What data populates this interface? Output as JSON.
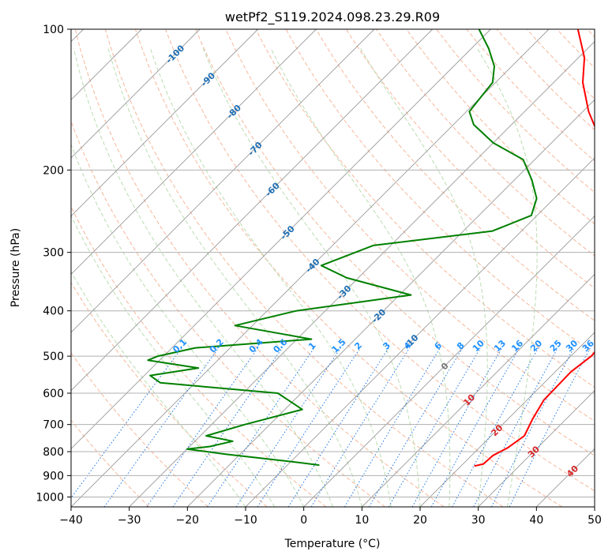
{
  "chart_data": {
    "type": "line",
    "title": "wetPf2_S119.2024.098.23.29.R09",
    "xlabel": "Temperature (°C)",
    "ylabel": "Pressure (hPa)",
    "xlim": [
      -40,
      50
    ],
    "ylim_pressure": [
      1050,
      100
    ],
    "y_scale": "log",
    "skew_deg": 45,
    "x_ticks": [
      "−40",
      "−30",
      "−20",
      "−10",
      "0",
      "10",
      "20",
      "30",
      "40",
      "50"
    ],
    "y_ticks": [
      {
        "p": 100,
        "label": "100"
      },
      {
        "p": 200,
        "label": "200"
      },
      {
        "p": 300,
        "label": "300"
      },
      {
        "p": 400,
        "label": "400"
      },
      {
        "p": 500,
        "label": "500"
      },
      {
        "p": 600,
        "label": "600"
      },
      {
        "p": 700,
        "label": "700"
      },
      {
        "p": 800,
        "label": "800"
      },
      {
        "p": 900,
        "label": "900"
      },
      {
        "p": 1000,
        "label": "1000"
      }
    ],
    "grid": true,
    "colors": {
      "temperature": "#ff0000",
      "dewpoint": "#008000",
      "dry_adiabats": "#f4a582",
      "moist_adiabats": "#b3d9a8",
      "mixing_ratio": "#1f77e4",
      "isotherms": "#9a9a9a",
      "grid": "#b0b0b0",
      "isotherm_label": "#1f6fb5",
      "isotherm_label_zero": "#777777",
      "isotherm_label_warm": "#d62728",
      "mixing_label": "#1e90ff"
    },
    "series": [
      {
        "name": "temperature",
        "points": [
          {
            "p": 859,
            "t": 22.3
          },
          {
            "p": 850,
            "t": 23.5
          },
          {
            "p": 815,
            "t": 23.7
          },
          {
            "p": 785,
            "t": 24.9
          },
          {
            "p": 740,
            "t": 25.7
          },
          {
            "p": 680,
            "t": 24.2
          },
          {
            "p": 620,
            "t": 22.9
          },
          {
            "p": 540,
            "t": 22.7
          },
          {
            "p": 500,
            "t": 23.5
          },
          {
            "p": 470,
            "t": 23.3
          },
          {
            "p": 440,
            "t": 24.3
          },
          {
            "p": 400,
            "t": 23.4
          },
          {
            "p": 350,
            "t": 19.8
          },
          {
            "p": 300,
            "t": 14.5
          },
          {
            "p": 250,
            "t": 7.0
          },
          {
            "p": 220,
            "t": 0.5
          },
          {
            "p": 200,
            "t": -5.5
          },
          {
            "p": 180,
            "t": -10.0
          },
          {
            "p": 150,
            "t": -19.0
          },
          {
            "p": 130,
            "t": -25.0
          },
          {
            "p": 115,
            "t": -29.0
          },
          {
            "p": 100,
            "t": -35.0
          }
        ]
      },
      {
        "name": "dewpoint",
        "points": [
          {
            "p": 855,
            "t": -4.5
          },
          {
            "p": 840,
            "t": -10.0
          },
          {
            "p": 810,
            "t": -22.5
          },
          {
            "p": 790,
            "t": -30.0
          },
          {
            "p": 780,
            "t": -26.5
          },
          {
            "p": 760,
            "t": -23.5
          },
          {
            "p": 740,
            "t": -29.0
          },
          {
            "p": 700,
            "t": -24.3
          },
          {
            "p": 650,
            "t": -17.0
          },
          {
            "p": 600,
            "t": -24.0
          },
          {
            "p": 570,
            "t": -46.0
          },
          {
            "p": 550,
            "t": -49.0
          },
          {
            "p": 530,
            "t": -42.0
          },
          {
            "p": 510,
            "t": -52.0
          },
          {
            "p": 500,
            "t": -51.0
          },
          {
            "p": 480,
            "t": -46.0
          },
          {
            "p": 460,
            "t": -27.5
          },
          {
            "p": 430,
            "t": -43.0
          },
          {
            "p": 400,
            "t": -35.0
          },
          {
            "p": 370,
            "t": -18.0
          },
          {
            "p": 340,
            "t": -32.0
          },
          {
            "p": 320,
            "t": -38.5
          },
          {
            "p": 290,
            "t": -33.0
          },
          {
            "p": 270,
            "t": -15.0
          },
          {
            "p": 250,
            "t": -11.0
          },
          {
            "p": 230,
            "t": -13.0
          },
          {
            "p": 210,
            "t": -17.0
          },
          {
            "p": 190,
            "t": -22.0
          },
          {
            "p": 175,
            "t": -30.0
          },
          {
            "p": 160,
            "t": -36.5
          },
          {
            "p": 150,
            "t": -39.5
          },
          {
            "p": 140,
            "t": -40.0
          },
          {
            "p": 130,
            "t": -40.5
          },
          {
            "p": 120,
            "t": -43.0
          },
          {
            "p": 110,
            "t": -47.0
          },
          {
            "p": 100,
            "t": -52.0
          }
        ]
      }
    ],
    "isotherm_labels": [
      {
        "label": "-100",
        "t": -100,
        "p": 113
      },
      {
        "label": "-90",
        "t": -90,
        "p": 128
      },
      {
        "label": "-80",
        "t": -80,
        "p": 150
      },
      {
        "label": "-70",
        "t": -70,
        "p": 180
      },
      {
        "label": "-60",
        "t": -60,
        "p": 220
      },
      {
        "label": "-50",
        "t": -50,
        "p": 272
      },
      {
        "label": "-40",
        "t": -40,
        "p": 320
      },
      {
        "label": "-30",
        "t": -30,
        "p": 365
      },
      {
        "label": "-20",
        "t": -20,
        "p": 410
      },
      {
        "label": "-10",
        "t": -10,
        "p": 465
      },
      {
        "label": "0",
        "t": 0,
        "p": 525
      },
      {
        "label": "10",
        "t": 10,
        "p": 620
      },
      {
        "label": "20",
        "t": 20,
        "p": 720
      },
      {
        "label": "30",
        "t": 30,
        "p": 800
      },
      {
        "label": "40",
        "t": 40,
        "p": 880
      }
    ],
    "mixing_ratio_labels": [
      "0.1",
      "0.2",
      "0.4",
      "0.6",
      "1",
      "1.5",
      "2",
      "3",
      "4",
      "6",
      "8",
      "10",
      "13",
      "16",
      "20",
      "25",
      "30",
      "36"
    ],
    "mixing_ratio_label_pressure": 480
  }
}
